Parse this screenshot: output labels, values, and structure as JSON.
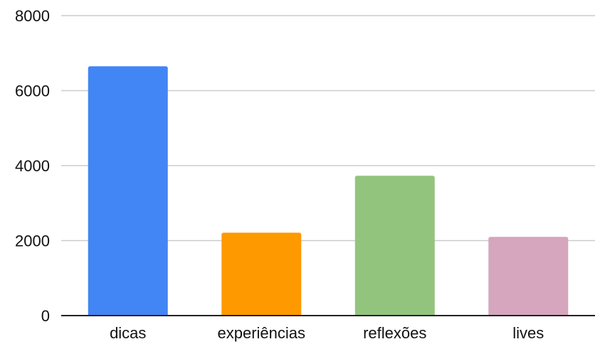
{
  "chart_data": {
    "type": "bar",
    "title": "",
    "xlabel": "",
    "ylabel": "",
    "categories": [
      "dicas",
      "experiências",
      "reflexões",
      "lives"
    ],
    "values": [
      6650,
      2210,
      3730,
      2100
    ],
    "colors": [
      "#4285F4",
      "#FF9900",
      "#93C47D",
      "#D5A6BD"
    ],
    "ylim": [
      0,
      8000
    ],
    "yticks": [
      0,
      2000,
      4000,
      6000,
      8000
    ],
    "ytick_labels": [
      "0",
      "2000",
      "4000",
      "6000",
      "8000"
    ],
    "grid": true,
    "gridline_color": "#cccccc",
    "axis_color": "#222222",
    "legend": "none"
  }
}
